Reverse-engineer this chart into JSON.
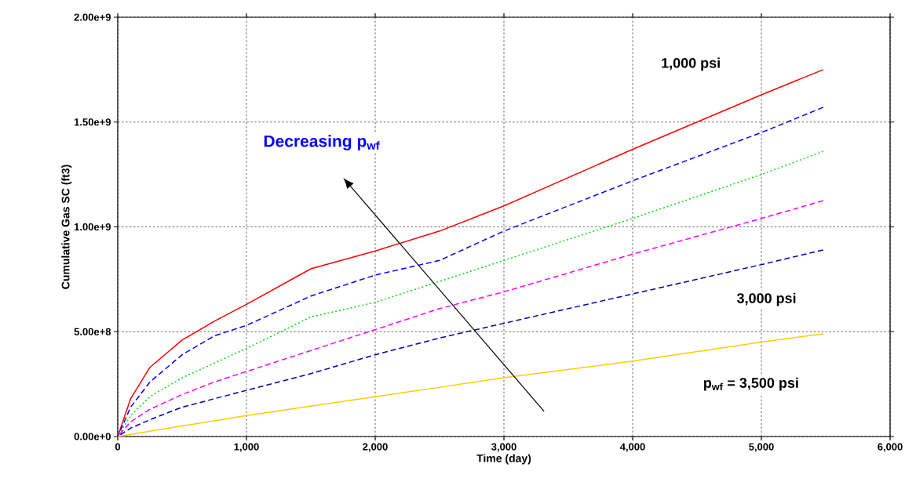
{
  "chart_data": {
    "type": "line",
    "xlabel": "Time (day)",
    "ylabel": "Cumulative Gas SC (ft3)",
    "x": [
      0,
      100,
      250,
      500,
      750,
      1000,
      1500,
      2000,
      2500,
      3000,
      4000,
      5000,
      5480
    ],
    "series": [
      {
        "color": "#ff0000",
        "line_style": "solid",
        "values": [
          0,
          180000000,
          330000000,
          460000000,
          550000000,
          630000000,
          800000000,
          885000000,
          980000000,
          1100000000,
          1370000000,
          1630000000,
          1750000000
        ]
      },
      {
        "color": "#0000ff",
        "line_style": "dashed",
        "values": [
          0,
          140000000,
          260000000,
          390000000,
          480000000,
          530000000,
          670000000,
          770000000,
          840000000,
          980000000,
          1220000000,
          1450000000,
          1570000000
        ]
      },
      {
        "color": "#00dd00",
        "line_style": "dotted",
        "values": [
          0,
          100000000,
          190000000,
          280000000,
          350000000,
          420000000,
          570000000,
          640000000,
          740000000,
          840000000,
          1040000000,
          1250000000,
          1360000000
        ]
      },
      {
        "color": "#ff00ff",
        "line_style": "dashed",
        "values": [
          0,
          70000000,
          130000000,
          200000000,
          260000000,
          310000000,
          410000000,
          510000000,
          610000000,
          690000000,
          870000000,
          1040000000,
          1125000000
        ]
      },
      {
        "color": "#0000aa",
        "line_style": "dashed",
        "values": [
          0,
          40000000,
          80000000,
          140000000,
          180000000,
          220000000,
          300000000,
          390000000,
          470000000,
          540000000,
          680000000,
          820000000,
          890000000
        ]
      },
      {
        "color": "#ffcc00",
        "line_style": "solid",
        "values": [
          0,
          10000000,
          25000000,
          50000000,
          75000000,
          100000000,
          145000000,
          190000000,
          235000000,
          280000000,
          360000000,
          450000000,
          490000000
        ]
      }
    ],
    "xlim": [
      0,
      6000
    ],
    "ylim": [
      0,
      2000000000
    ],
    "xticks": [
      0,
      {
        "value": 1000,
        "label": "1,000"
      },
      {
        "value": 2000,
        "label": "2,000"
      },
      {
        "value": 3000,
        "label": "3,000"
      },
      {
        "value": 4000,
        "label": "4,000"
      },
      {
        "value": 5000,
        "label": "5,000"
      },
      {
        "value": 6000,
        "label": "6,000"
      }
    ],
    "yticks": [
      {
        "value": 0,
        "label": "0.00e+0"
      },
      {
        "value": 500000000,
        "label": "5.00e+8"
      },
      {
        "value": 1000000000,
        "label": "1.00e+9"
      },
      {
        "value": 1500000000,
        "label": "1.50e+9"
      },
      {
        "value": 2000000000,
        "label": "2.00e+9"
      }
    ],
    "grid": true,
    "marker": "none",
    "annotations": [
      "1,000 psi",
      "3,000 psi",
      "p$_{wf}$ = 3,500 psi",
      "Decreasing p$_{wf}$"
    ]
  }
}
